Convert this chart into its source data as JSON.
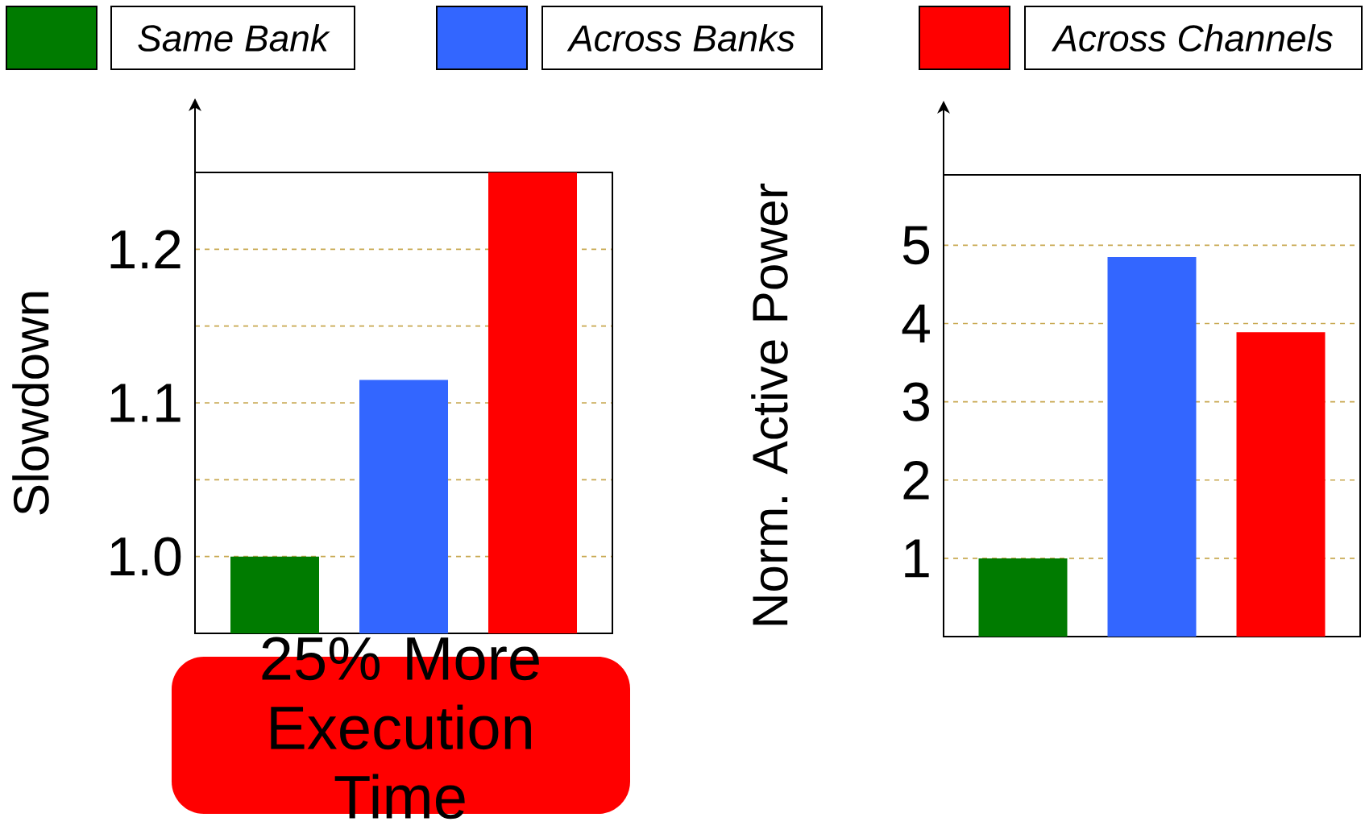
{
  "chart_data": [
    {
      "type": "bar",
      "ylabel": "Slowdown",
      "categories": [
        null
      ],
      "series": [
        {
          "name": "Same Bank",
          "color": "#007b00",
          "values": [
            1.0
          ]
        },
        {
          "name": "Across Banks",
          "color": "#3366ff",
          "values": [
            1.115
          ]
        },
        {
          "name": "Across Channels",
          "color": "#ff0000",
          "values": [
            1.25
          ]
        }
      ],
      "ylim": [
        0.95,
        1.25
      ],
      "yticks": [
        {
          "value": 1,
          "label": "1.0"
        },
        {
          "value": 1.05,
          "label": null
        },
        1.1,
        {
          "value": 1.15,
          "label": null
        },
        1.2
      ],
      "grid": "y",
      "legend": "top",
      "annotations": [
        "25% More Execution Time"
      ]
    },
    {
      "type": "bar",
      "ylabel": "Norm. Active Power",
      "categories": [
        null
      ],
      "series": [
        {
          "color": "#007b00",
          "values": [
            1.0
          ]
        },
        {
          "color": "#3366ff",
          "values": [
            4.85
          ]
        },
        {
          "color": "#ff0000",
          "values": [
            3.89
          ]
        }
      ],
      "ylim": [
        0,
        5.9
      ],
      "yticks": [
        1,
        2,
        3,
        4,
        5
      ],
      "grid": "y"
    }
  ]
}
